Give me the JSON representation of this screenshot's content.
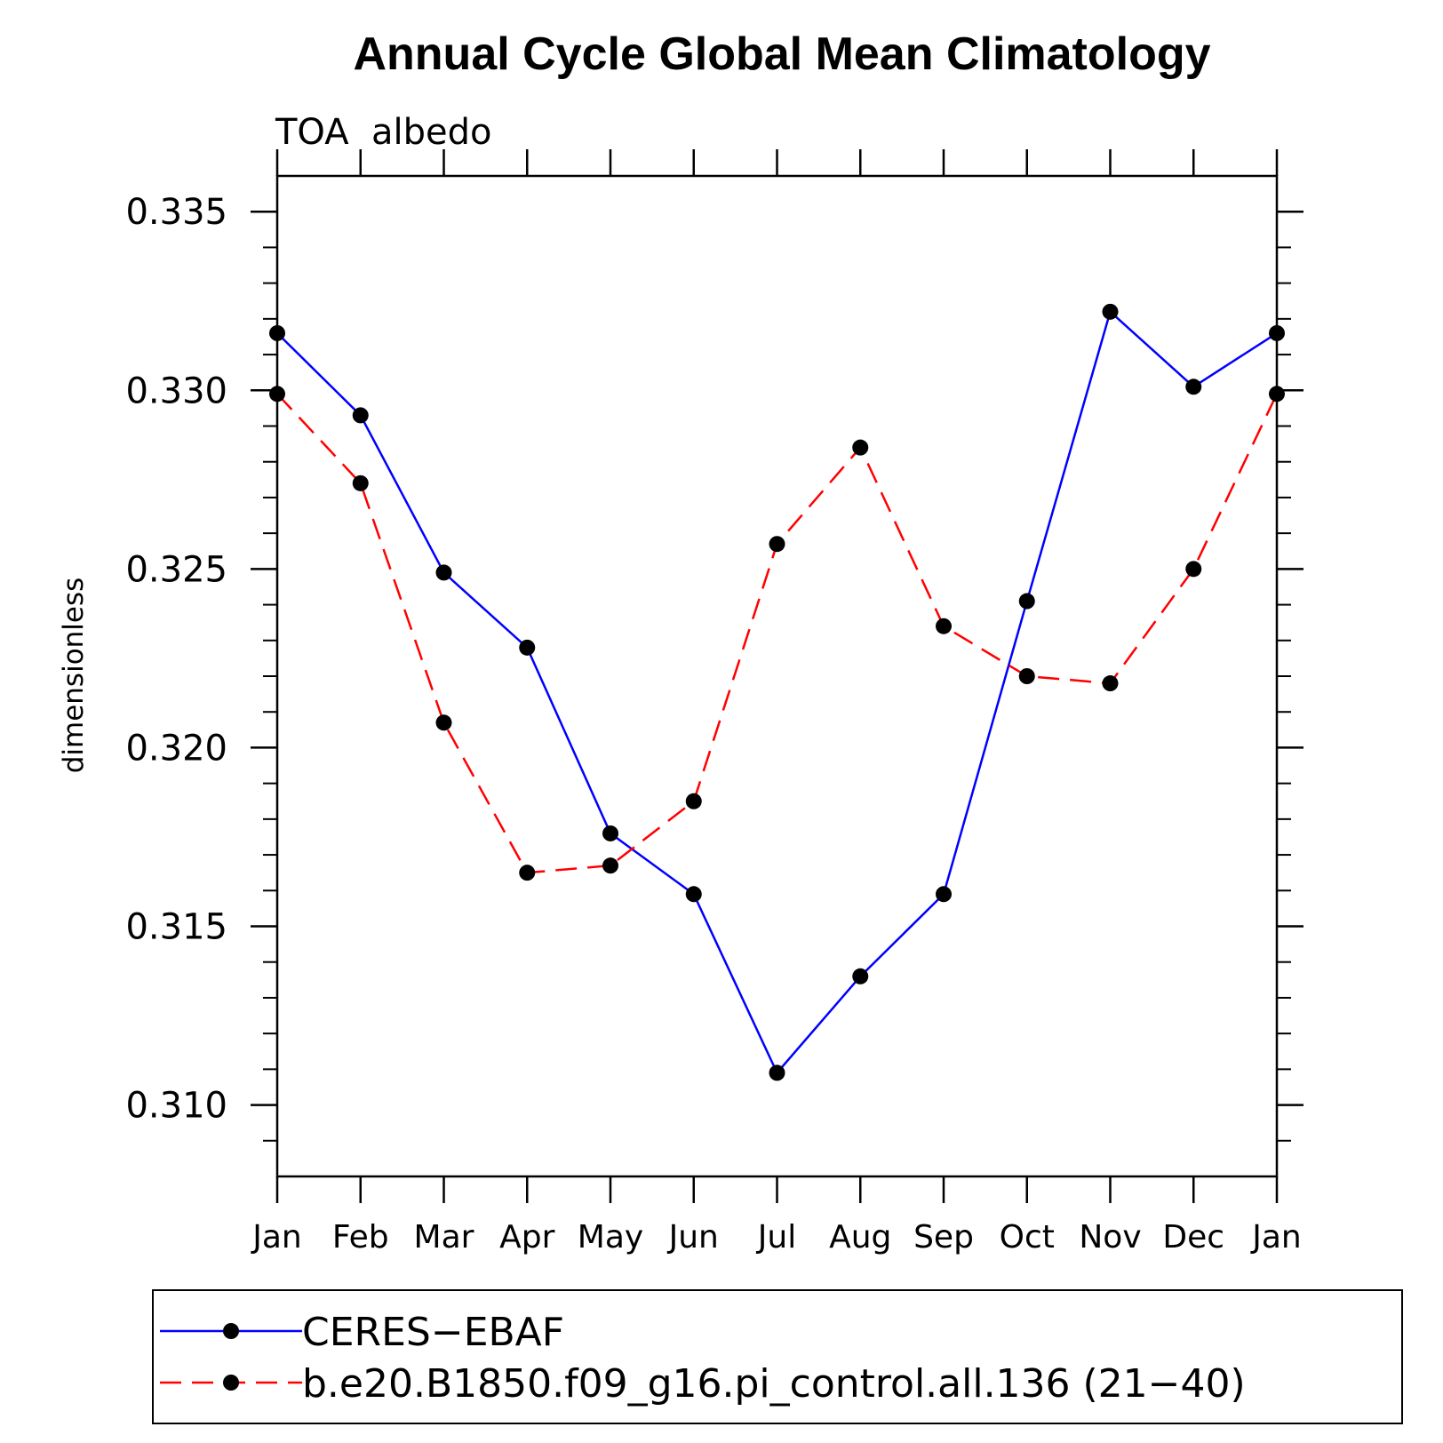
{
  "chart_data": {
    "type": "line",
    "title": "Annual Cycle Global Mean Climatology",
    "subtitle": "TOA  albedo",
    "ylabel": "dimensionless",
    "xlabel": "",
    "categories": [
      "Jan",
      "Feb",
      "Mar",
      "Apr",
      "May",
      "Jun",
      "Jul",
      "Aug",
      "Sep",
      "Oct",
      "Nov",
      "Dec",
      "Jan"
    ],
    "ylim": [
      0.308,
      0.336
    ],
    "yticks": [
      0.31,
      0.315,
      0.32,
      0.325,
      0.33,
      0.335
    ],
    "ytick_labels": [
      "0.310",
      "0.315",
      "0.320",
      "0.325",
      "0.330",
      "0.335"
    ],
    "y_minor_step": 0.001,
    "legend_position": "bottom",
    "series": [
      {
        "name": "CERES−EBAF",
        "color": "#0000ff",
        "dash": "solid",
        "marker": "filled-circle",
        "values": [
          0.3316,
          0.3293,
          0.3249,
          0.3228,
          0.3176,
          0.3159,
          0.3109,
          0.3136,
          0.3159,
          0.3241,
          0.3322,
          0.3301,
          0.3316
        ]
      },
      {
        "name": "b.e20.B1850.f09_g16.pi_control.all.136 (21−40)",
        "color": "#ff0000",
        "dash": "dashed",
        "marker": "filled-circle",
        "values": [
          0.3299,
          0.3274,
          0.3207,
          0.3165,
          0.3167,
          0.3185,
          0.3257,
          0.3284,
          0.3234,
          0.322,
          0.3218,
          0.325,
          0.3299
        ]
      }
    ]
  }
}
